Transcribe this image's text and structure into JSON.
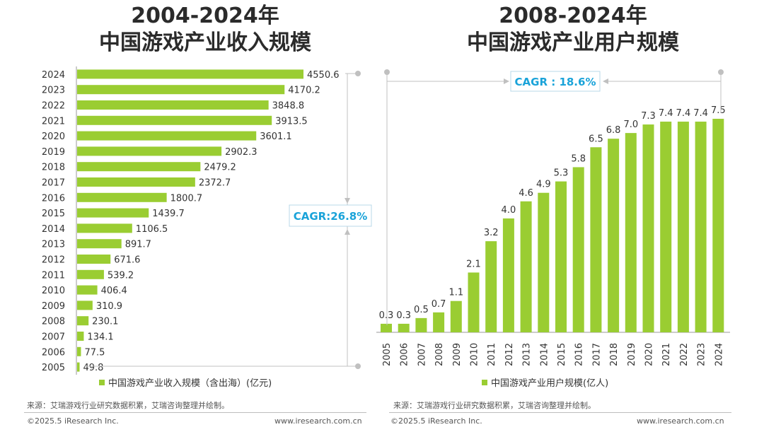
{
  "colors": {
    "bar": "#9acd32",
    "cagr_text": "#1aa3d9",
    "axis": "#999999",
    "text": "#333333"
  },
  "left_chart": {
    "title_line1": "2004-2024年",
    "title_line2": "中国游戏产业收入规模",
    "legend": "中国游戏产业收入规模（含出海）(亿元)",
    "cagr": "CAGR:26.8%",
    "source": "来源：艾瑞游戏行业研究数据积累，艾瑞咨询整理并绘制。",
    "copyright": "©2025.5 iResearch Inc.",
    "website": "www.iresearch.com.cn"
  },
  "right_chart": {
    "title_line1": "2008-2024年",
    "title_line2": "中国游戏产业用户规模",
    "legend": "中国游戏产业用户规模(亿人)",
    "cagr": "CAGR : 18.6%",
    "source": "来源：艾瑞游戏行业研究数据积累，艾瑞咨询整理并绘制。",
    "copyright": "©2025.5 iResearch Inc.",
    "website": "www.iresearch.com.cn"
  },
  "chart_data": [
    {
      "type": "bar",
      "orientation": "horizontal",
      "title": "2004-2024年中国游戏产业收入规模",
      "categories": [
        "2024",
        "2023",
        "2022",
        "2021",
        "2020",
        "2019",
        "2018",
        "2017",
        "2016",
        "2015",
        "2014",
        "2013",
        "2012",
        "2011",
        "2010",
        "2009",
        "2008",
        "2007",
        "2006",
        "2005"
      ],
      "values": [
        4550.6,
        4170.2,
        3848.8,
        3913.5,
        3601.1,
        2902.3,
        2479.2,
        2372.7,
        1800.7,
        1439.7,
        1106.5,
        891.7,
        671.6,
        539.2,
        406.4,
        310.9,
        230.1,
        134.1,
        77.5,
        49.8
      ],
      "value_labels": [
        "4550.6",
        "4170.2",
        "3848.8",
        "3913.5",
        "3601.1",
        "2902.3",
        "2479.2",
        "2372.7",
        "1800.7",
        "1439.7",
        "1106.5",
        "891.7",
        "671.6",
        "539.2",
        "406.4",
        "310.9",
        "230.1",
        "134.1",
        "77.5",
        "49.8"
      ],
      "xlim": [
        0,
        4550.6
      ],
      "legend": "中国游戏产业收入规模（含出海）(亿元)",
      "annotation": "CAGR:26.8%"
    },
    {
      "type": "bar",
      "orientation": "vertical",
      "title": "2008-2024年中国游戏产业用户规模",
      "categories": [
        "2005",
        "2006",
        "2007",
        "2008",
        "2009",
        "2010",
        "2011",
        "2012",
        "2013",
        "2014",
        "2015",
        "2016",
        "2017",
        "2018",
        "2019",
        "2020",
        "2021",
        "2022",
        "2023",
        "2024"
      ],
      "values": [
        0.3,
        0.3,
        0.5,
        0.7,
        1.1,
        2.1,
        3.2,
        4.0,
        4.6,
        4.9,
        5.3,
        5.8,
        6.5,
        6.8,
        7.0,
        7.3,
        7.4,
        7.4,
        7.4,
        7.5
      ],
      "value_labels": [
        "0.3",
        "0.3",
        "0.5",
        "0.7",
        "1.1",
        "2.1",
        "3.2",
        "4.0",
        "4.6",
        "4.9",
        "5.3",
        "5.8",
        "6.5",
        "6.8",
        "7.0",
        "7.3",
        "7.4",
        "7.4",
        "7.4",
        "7.5"
      ],
      "ylim": [
        0,
        7.5
      ],
      "legend": "中国游戏产业用户规模(亿人)",
      "annotation": "CAGR : 18.6%"
    }
  ]
}
